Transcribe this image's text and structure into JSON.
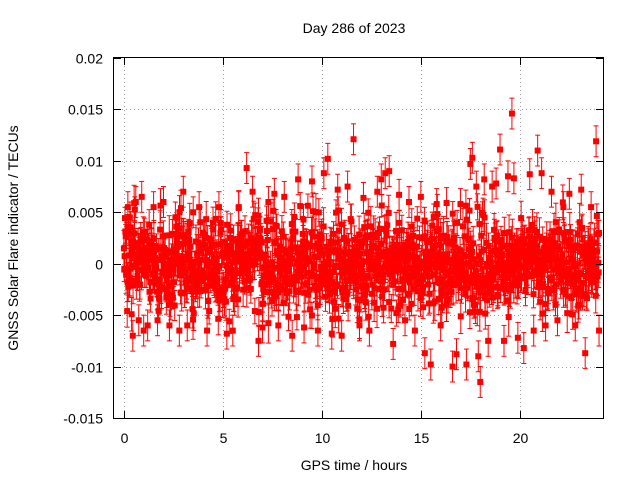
{
  "chart_data": {
    "type": "scatter",
    "title": "Day 286 of 2023",
    "xlabel": "GPS time / hours",
    "ylabel": "GNSS Solar Flare indicator / TECUs",
    "xlim": [
      -0.5,
      24.2
    ],
    "ylim": [
      -0.015,
      0.02
    ],
    "xticks": [
      "0",
      "5",
      "10",
      "15",
      "20"
    ],
    "xtick_values": [
      0,
      5,
      10,
      15,
      20
    ],
    "yticks": [
      "-0.015",
      "-0.01",
      "-0.005",
      "0",
      "0.005",
      "0.01",
      "0.015",
      "0.02"
    ],
    "ytick_values": [
      -0.015,
      -0.01,
      -0.005,
      0,
      0.005,
      0.01,
      0.015,
      0.02
    ],
    "grid": true,
    "legend": "none",
    "marker": "square",
    "color": "#ff0000",
    "errorbars": true,
    "typical_error": 0.0015,
    "series": [
      {
        "points": [
          [
            0.2,
            0.0055
          ],
          [
            0.3,
            0.0045
          ],
          [
            0.45,
            -0.007
          ],
          [
            0.6,
            0.006
          ],
          [
            0.75,
            -0.0055
          ],
          [
            0.9,
            0.0065
          ],
          [
            1.0,
            -0.0065
          ],
          [
            1.2,
            -0.006
          ],
          [
            1.5,
            0.0055
          ],
          [
            1.7,
            -0.0055
          ],
          [
            2.0,
            0.006
          ],
          [
            2.3,
            -0.006
          ],
          [
            2.6,
            0.0045
          ],
          [
            2.8,
            -0.0065
          ],
          [
            3.0,
            0.007
          ],
          [
            3.2,
            -0.006
          ],
          [
            3.5,
            0.005
          ],
          [
            3.8,
            0.0055
          ],
          [
            4.2,
            -0.0065
          ],
          [
            4.5,
            0.004
          ],
          [
            4.8,
            0.0055
          ],
          [
            5.2,
            -0.0068
          ],
          [
            5.5,
            -0.0065
          ],
          [
            5.8,
            0.0055
          ],
          [
            6.2,
            0.0093
          ],
          [
            6.5,
            0.007
          ],
          [
            6.8,
            -0.0075
          ],
          [
            7.0,
            -0.0062
          ],
          [
            7.3,
            0.006
          ],
          [
            7.6,
            0.0068
          ],
          [
            7.8,
            -0.006
          ],
          [
            8.1,
            0.0065
          ],
          [
            8.5,
            -0.007
          ],
          [
            8.8,
            0.0082
          ],
          [
            9.1,
            -0.0062
          ],
          [
            9.5,
            0.008
          ],
          [
            9.8,
            -0.0065
          ],
          [
            10.1,
            0.0088
          ],
          [
            10.3,
            0.0102
          ],
          [
            10.5,
            -0.0068
          ],
          [
            10.8,
            0.0072
          ],
          [
            11.0,
            -0.007
          ],
          [
            11.3,
            0.0075
          ],
          [
            11.6,
            0.0121
          ],
          [
            11.9,
            -0.006
          ],
          [
            12.1,
            0.0064
          ],
          [
            12.4,
            -0.0065
          ],
          [
            12.8,
            0.007
          ],
          [
            13.0,
            0.0082
          ],
          [
            13.2,
            0.0088
          ],
          [
            13.4,
            0.009
          ],
          [
            13.6,
            -0.0078
          ],
          [
            13.9,
            0.0067
          ],
          [
            14.2,
            -0.0055
          ],
          [
            14.4,
            0.006
          ],
          [
            14.7,
            -0.0065
          ],
          [
            15.0,
            0.0065
          ],
          [
            15.2,
            -0.0087
          ],
          [
            15.5,
            -0.0098
          ],
          [
            15.8,
            0.0058
          ],
          [
            16.0,
            -0.006
          ],
          [
            16.3,
            0.0059
          ],
          [
            16.6,
            -0.01
          ],
          [
            16.8,
            -0.0088
          ],
          [
            17.0,
            0.0058
          ],
          [
            17.3,
            -0.0098
          ],
          [
            17.5,
            0.0097
          ],
          [
            17.6,
            0.0103
          ],
          [
            17.8,
            0.0075
          ],
          [
            17.9,
            -0.009
          ],
          [
            18.0,
            -0.0115
          ],
          [
            18.2,
            0.0082
          ],
          [
            18.4,
            -0.0075
          ],
          [
            18.6,
            0.0075
          ],
          [
            18.8,
            0.0078
          ],
          [
            19.0,
            0.0111
          ],
          [
            19.2,
            -0.0075
          ],
          [
            19.4,
            0.0085
          ],
          [
            19.6,
            0.0146
          ],
          [
            19.7,
            0.0083
          ],
          [
            19.9,
            -0.0072
          ],
          [
            20.2,
            -0.0082
          ],
          [
            20.5,
            0.0087
          ],
          [
            20.7,
            -0.0065
          ],
          [
            20.9,
            0.011
          ],
          [
            21.1,
            0.0088
          ],
          [
            21.3,
            -0.006
          ],
          [
            21.6,
            0.007
          ],
          [
            21.9,
            -0.0055
          ],
          [
            22.2,
            0.0055
          ],
          [
            22.5,
            0.0068
          ],
          [
            22.8,
            -0.006
          ],
          [
            23.1,
            0.0072
          ],
          [
            23.3,
            -0.0087
          ],
          [
            23.6,
            0.0055
          ],
          [
            23.85,
            0.0119
          ],
          [
            24.0,
            -0.0065
          ]
        ]
      }
    ]
  }
}
